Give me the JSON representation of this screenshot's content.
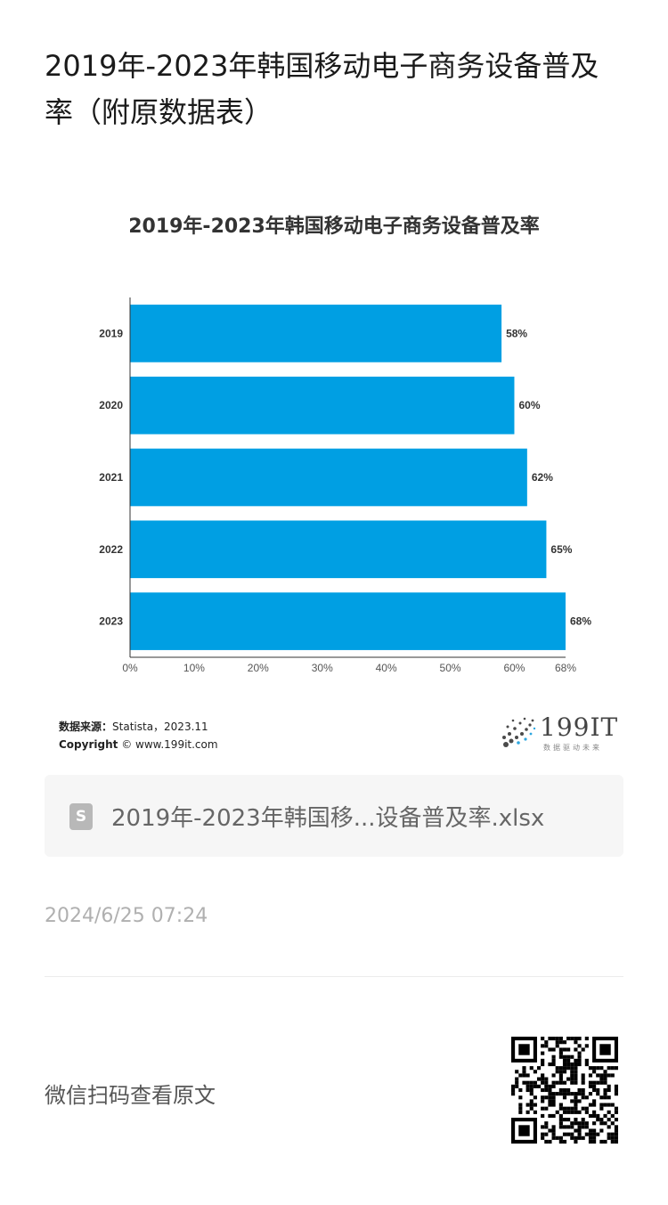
{
  "article": {
    "title": "2019年-2023年韩国移动电子商务设备普及率（附原数据表）"
  },
  "chart_data": {
    "type": "bar",
    "orientation": "horizontal",
    "title": "2019年-2023年韩国移动电子商务设备普及率",
    "categories": [
      "2019",
      "2020",
      "2021",
      "2022",
      "2023"
    ],
    "values": [
      58,
      60,
      62,
      65,
      68
    ],
    "value_labels": [
      "58%",
      "60%",
      "62%",
      "65%",
      "68%"
    ],
    "x_ticks": [
      "0%",
      "10%",
      "20%",
      "30%",
      "40%",
      "50%",
      "60%",
      "68%"
    ],
    "x_tick_values": [
      0,
      10,
      20,
      30,
      40,
      50,
      60,
      68
    ],
    "xlim": [
      0,
      68
    ],
    "bar_color": "#009fe3",
    "grid": false,
    "xlabel": "",
    "ylabel": ""
  },
  "source": {
    "label": "数据来源：",
    "text": "Statista，2023.11",
    "copyright_label": "Copyright",
    "copyright_text": "© www.199it.com"
  },
  "logo": {
    "text": "199IT",
    "subtitle": "数据驱动未来"
  },
  "attachment": {
    "icon": "spreadsheet-file-icon",
    "icon_glyph": "S",
    "filename": "2019年-2023年韩国移...设备普及率.xlsx"
  },
  "timestamp": "2024/6/25 07:24",
  "footer": {
    "wechat_label": "微信扫码查看原文"
  }
}
